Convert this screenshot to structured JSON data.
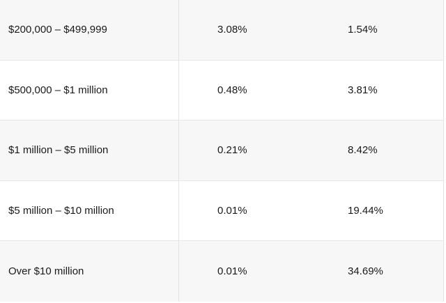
{
  "table": {
    "rows": [
      {
        "range": "$200,000 – $499,999",
        "col_a": "3.08%",
        "col_b": "1.54%"
      },
      {
        "range": "$500,000 – $1 million",
        "col_a": "0.48%",
        "col_b": "3.81%"
      },
      {
        "range": "$1 million – $5 million",
        "col_a": "0.21%",
        "col_b": "8.42%"
      },
      {
        "range": "$5 million – $10 million",
        "col_a": "0.01%",
        "col_b": "19.44%"
      },
      {
        "range": "Over $10 million",
        "col_a": "0.01%",
        "col_b": "34.69%"
      }
    ]
  }
}
